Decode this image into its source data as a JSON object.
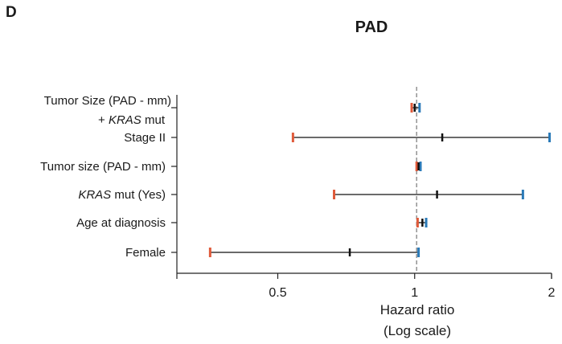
{
  "panel_label": "D",
  "chart_data": {
    "type": "forest",
    "title": "PAD",
    "xlabel": "Hazard ratio",
    "xlabel_sub": "(Log scale)",
    "xscale": "log",
    "xlim": [
      0.3,
      2.0
    ],
    "xticks": [
      {
        "value": 0.5,
        "label": "0.5"
      },
      {
        "value": 1,
        "label": "1"
      },
      {
        "value": 2,
        "label": "2"
      }
    ],
    "reference_line": 1.01,
    "colors": {
      "lower": "#e05a3a",
      "upper": "#2a7ab8",
      "estimate": "#111111",
      "ref": "#8a8a8a"
    },
    "rows": [
      {
        "label": "Tumor Size (PAD - mm)",
        "label_line2": [
          {
            "text": "+ ",
            "italic": false
          },
          {
            "text": "KRAS",
            "italic": true
          },
          {
            "text": " mut",
            "italic": false
          }
        ],
        "estimate": 1.0,
        "lower": 0.985,
        "upper": 1.025
      },
      {
        "label": "Stage II",
        "estimate": 1.15,
        "lower": 0.54,
        "upper": 1.98
      },
      {
        "label": "Tumor size (PAD - mm)",
        "estimate": 1.02,
        "lower": 1.01,
        "upper": 1.03
      },
      {
        "label_parts": [
          {
            "text": "KRAS",
            "italic": true
          },
          {
            "text": " mut (Yes)",
            "italic": false
          }
        ],
        "estimate": 1.12,
        "lower": 0.665,
        "upper": 1.73
      },
      {
        "label": "Age at diagnosis",
        "estimate": 1.04,
        "lower": 1.015,
        "upper": 1.06
      },
      {
        "label": "Female",
        "estimate": 0.72,
        "lower": 0.355,
        "upper": 1.02
      }
    ]
  }
}
